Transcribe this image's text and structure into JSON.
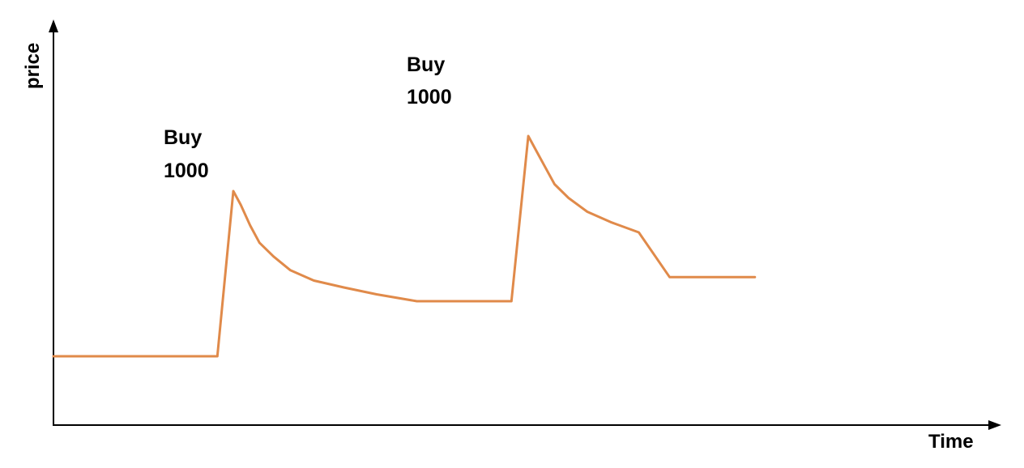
{
  "chart_data": {
    "type": "line",
    "title": "",
    "xlabel": "Time",
    "ylabel": "price",
    "grid": false,
    "legend": "none",
    "axis_ticks": "none",
    "line_color": "#E08A4A",
    "xlim": [
      0,
      100
    ],
    "ylim": [
      0,
      100
    ],
    "series": [
      {
        "x": [
          0,
          17.5,
          19.2,
          20,
          21,
          22,
          23.5,
          25.3,
          27.8,
          31,
          34.5,
          38.8,
          48.9,
          50.7,
          51.5,
          52.5,
          53.5,
          55,
          57,
          59.5,
          62.5,
          65.8,
          74.9
        ],
        "y": [
          20,
          20,
          68,
          64,
          58,
          53,
          49,
          45,
          42,
          40,
          38,
          36,
          36,
          84,
          80,
          75,
          70,
          66,
          62,
          59,
          56,
          43,
          43
        ]
      }
    ],
    "annotations": [
      {
        "lines": [
          "Buy",
          "1000"
        ],
        "x": 17.5,
        "y": 80
      },
      {
        "lines": [
          "Buy",
          "1000"
        ],
        "x": 43.4,
        "y": 100
      }
    ]
  }
}
